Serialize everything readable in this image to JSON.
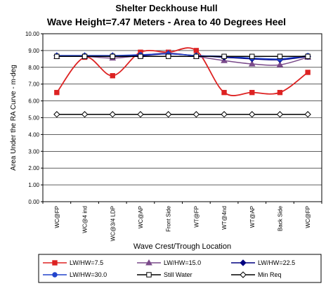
{
  "chart_data": {
    "type": "line",
    "title": "Shelter Deckhouse Hull",
    "subtitle": "Wave Height=7.47 Meters - Area to 40 Degrees Heel",
    "xlabel": "Wave Crest/Trough Location",
    "ylabel": "Area Under the RA Curve - m-deg",
    "ylim": [
      0,
      10
    ],
    "yticks": [
      "0.00",
      "1.00",
      "2.00",
      "3.00",
      "4.00",
      "5.00",
      "6.00",
      "7.00",
      "8.00",
      "9.00",
      "10.00"
    ],
    "grid": true,
    "legend_position": "bottom",
    "categories": [
      "WC@FP",
      "WC@4 ind",
      "WC@3/4 LDP",
      "WC@AP",
      "Front Side",
      "WT@FP",
      "WT@4nd",
      "WT@AP",
      "Back Side",
      "WC@FP"
    ],
    "series": [
      {
        "name": "LW/HW=7.5",
        "color": "#dd2222",
        "marker": "square-filled",
        "values": [
          6.5,
          8.6,
          7.5,
          8.9,
          8.9,
          9.0,
          6.5,
          6.5,
          6.5,
          7.7
        ]
      },
      {
        "name": "LW/HW=15.0",
        "color": "#7a4a8a",
        "marker": "triangle",
        "values": [
          8.65,
          8.65,
          8.55,
          8.7,
          8.85,
          8.65,
          8.4,
          8.2,
          8.15,
          8.6
        ]
      },
      {
        "name": "LW/HW=22.5",
        "color": "#000080",
        "marker": "diamond-filled",
        "values": [
          8.7,
          8.7,
          8.7,
          8.7,
          8.8,
          8.7,
          8.6,
          8.5,
          8.45,
          8.65
        ]
      },
      {
        "name": "LW/HW=30.0",
        "color": "#2244cc",
        "marker": "circle-filled",
        "values": [
          8.7,
          8.7,
          8.7,
          8.75,
          8.8,
          8.7,
          8.65,
          8.55,
          8.5,
          8.7
        ]
      },
      {
        "name": "Still Water",
        "color": "#000000",
        "marker": "square-open",
        "values": [
          8.65,
          8.65,
          8.65,
          8.65,
          8.65,
          8.65,
          8.65,
          8.65,
          8.65,
          8.65
        ]
      },
      {
        "name": "Min Req",
        "color": "#000000",
        "marker": "diamond-open",
        "values": [
          5.2,
          5.2,
          5.2,
          5.2,
          5.2,
          5.2,
          5.2,
          5.2,
          5.2,
          5.2
        ]
      }
    ]
  }
}
